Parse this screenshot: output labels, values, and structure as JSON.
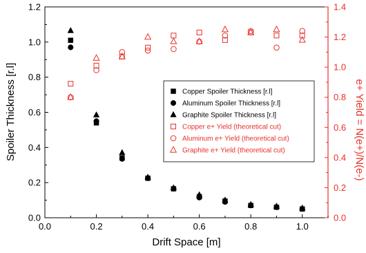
{
  "chart_data": {
    "type": "scatter",
    "xlabel": "Drift Space [m]",
    "ylabel_left": "Spoiler Thickness [r.l]",
    "ylabel_right": "e+ Yield = N(e+)/N(e-)",
    "xlim": [
      0.0,
      1.1
    ],
    "ylim_left": [
      0.0,
      1.2
    ],
    "ylim_right": [
      0.0,
      1.4
    ],
    "x_ticks": [
      "0.0",
      "0.2",
      "0.4",
      "0.6",
      "0.8",
      "1.0"
    ],
    "y_ticks_left": [
      "0.0",
      "0.2",
      "0.4",
      "0.6",
      "0.8",
      "1.0",
      "1.2"
    ],
    "y_ticks_right": [
      "0.0",
      "0.2",
      "0.4",
      "0.6",
      "0.8",
      "1.0",
      "1.2",
      "1.4"
    ],
    "grid": false,
    "legend_position": "right",
    "colors": {
      "left_axis": "#000000",
      "right_axis": "#e8302a"
    },
    "series": [
      {
        "name": "Copper Spoiler Thickness [r.l]",
        "axis": "left",
        "marker": "square-filled",
        "color": "#000000",
        "x": [
          0.1,
          0.2,
          0.3,
          0.4,
          0.5,
          0.6,
          0.7,
          0.8,
          0.9,
          1.0
        ],
        "y": [
          1.01,
          0.54,
          0.34,
          0.225,
          0.165,
          0.12,
          0.095,
          0.07,
          0.06,
          0.05
        ]
      },
      {
        "name": "Aluminum Spoiler Thickness [r.l]",
        "axis": "left",
        "marker": "circle-filled",
        "color": "#000000",
        "x": [
          0.1,
          0.2,
          0.3,
          0.4,
          0.5,
          0.6,
          0.7,
          0.8,
          0.9,
          1.0
        ],
        "y": [
          0.97,
          0.55,
          0.335,
          0.225,
          0.165,
          0.115,
          0.09,
          0.07,
          0.06,
          0.05
        ]
      },
      {
        "name": "Graphite Spoiler Thickness [r.l]",
        "axis": "left",
        "marker": "triangle-filled",
        "color": "#000000",
        "x": [
          0.1,
          0.2,
          0.3,
          0.4,
          0.5,
          0.6,
          0.7,
          0.8,
          0.9,
          1.0
        ],
        "y": [
          1.065,
          0.585,
          0.37,
          0.23,
          0.17,
          0.13,
          0.1,
          0.075,
          0.065,
          0.055
        ]
      },
      {
        "name": "Copper e+ Yield (theoretical cut)",
        "axis": "right",
        "marker": "square-open",
        "color": "#e8302a",
        "x": [
          0.1,
          0.2,
          0.3,
          0.4,
          0.5,
          0.6,
          0.7,
          0.8,
          0.9,
          1.0
        ],
        "y": [
          0.89,
          1.01,
          1.07,
          1.13,
          1.21,
          1.23,
          1.18,
          1.23,
          1.21,
          1.21
        ]
      },
      {
        "name": "Aluminum e+ Yield (theoretical cut)",
        "axis": "right",
        "marker": "circle-open",
        "color": "#e8302a",
        "x": [
          0.1,
          0.2,
          0.3,
          0.4,
          0.5,
          0.6,
          0.7,
          0.8,
          0.9,
          1.0
        ],
        "y": [
          0.8,
          0.98,
          1.1,
          1.11,
          1.12,
          1.17,
          1.21,
          1.24,
          1.13,
          1.24
        ]
      },
      {
        "name": "Graphite e+ Yield (theoretical cut)",
        "axis": "right",
        "marker": "triangle-open",
        "color": "#e8302a",
        "x": [
          0.1,
          0.2,
          0.3,
          0.4,
          0.5,
          0.6,
          0.7,
          0.8,
          0.9,
          1.0
        ],
        "y": [
          0.8,
          1.06,
          1.07,
          1.2,
          1.17,
          1.17,
          1.25,
          1.23,
          1.25,
          1.18
        ]
      }
    ]
  }
}
